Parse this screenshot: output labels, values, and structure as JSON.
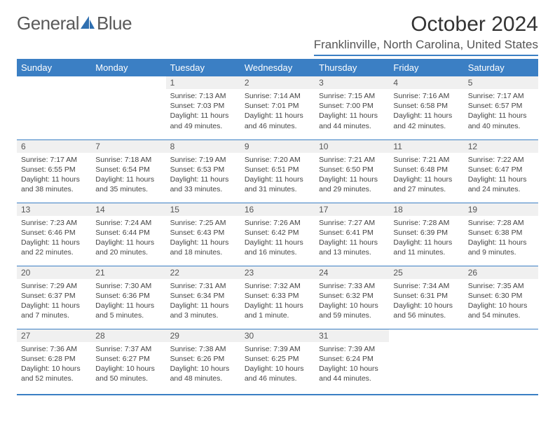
{
  "brand": {
    "word1": "General",
    "word2": "Blue"
  },
  "title": "October 2024",
  "location": "Franklinville, North Carolina, United States",
  "colors": {
    "accent": "#3b7fc4",
    "row_alt": "#f0f0f0",
    "text": "#333333"
  },
  "weekdays": [
    "Sunday",
    "Monday",
    "Tuesday",
    "Wednesday",
    "Thursday",
    "Friday",
    "Saturday"
  ],
  "rows": [
    [
      null,
      null,
      {
        "n": "1",
        "sr": "Sunrise: 7:13 AM",
        "ss": "Sunset: 7:03 PM",
        "dl": "Daylight: 11 hours and 49 minutes."
      },
      {
        "n": "2",
        "sr": "Sunrise: 7:14 AM",
        "ss": "Sunset: 7:01 PM",
        "dl": "Daylight: 11 hours and 46 minutes."
      },
      {
        "n": "3",
        "sr": "Sunrise: 7:15 AM",
        "ss": "Sunset: 7:00 PM",
        "dl": "Daylight: 11 hours and 44 minutes."
      },
      {
        "n": "4",
        "sr": "Sunrise: 7:16 AM",
        "ss": "Sunset: 6:58 PM",
        "dl": "Daylight: 11 hours and 42 minutes."
      },
      {
        "n": "5",
        "sr": "Sunrise: 7:17 AM",
        "ss": "Sunset: 6:57 PM",
        "dl": "Daylight: 11 hours and 40 minutes."
      }
    ],
    [
      {
        "n": "6",
        "sr": "Sunrise: 7:17 AM",
        "ss": "Sunset: 6:55 PM",
        "dl": "Daylight: 11 hours and 38 minutes."
      },
      {
        "n": "7",
        "sr": "Sunrise: 7:18 AM",
        "ss": "Sunset: 6:54 PM",
        "dl": "Daylight: 11 hours and 35 minutes."
      },
      {
        "n": "8",
        "sr": "Sunrise: 7:19 AM",
        "ss": "Sunset: 6:53 PM",
        "dl": "Daylight: 11 hours and 33 minutes."
      },
      {
        "n": "9",
        "sr": "Sunrise: 7:20 AM",
        "ss": "Sunset: 6:51 PM",
        "dl": "Daylight: 11 hours and 31 minutes."
      },
      {
        "n": "10",
        "sr": "Sunrise: 7:21 AM",
        "ss": "Sunset: 6:50 PM",
        "dl": "Daylight: 11 hours and 29 minutes."
      },
      {
        "n": "11",
        "sr": "Sunrise: 7:21 AM",
        "ss": "Sunset: 6:48 PM",
        "dl": "Daylight: 11 hours and 27 minutes."
      },
      {
        "n": "12",
        "sr": "Sunrise: 7:22 AM",
        "ss": "Sunset: 6:47 PM",
        "dl": "Daylight: 11 hours and 24 minutes."
      }
    ],
    [
      {
        "n": "13",
        "sr": "Sunrise: 7:23 AM",
        "ss": "Sunset: 6:46 PM",
        "dl": "Daylight: 11 hours and 22 minutes."
      },
      {
        "n": "14",
        "sr": "Sunrise: 7:24 AM",
        "ss": "Sunset: 6:44 PM",
        "dl": "Daylight: 11 hours and 20 minutes."
      },
      {
        "n": "15",
        "sr": "Sunrise: 7:25 AM",
        "ss": "Sunset: 6:43 PM",
        "dl": "Daylight: 11 hours and 18 minutes."
      },
      {
        "n": "16",
        "sr": "Sunrise: 7:26 AM",
        "ss": "Sunset: 6:42 PM",
        "dl": "Daylight: 11 hours and 16 minutes."
      },
      {
        "n": "17",
        "sr": "Sunrise: 7:27 AM",
        "ss": "Sunset: 6:41 PM",
        "dl": "Daylight: 11 hours and 13 minutes."
      },
      {
        "n": "18",
        "sr": "Sunrise: 7:28 AM",
        "ss": "Sunset: 6:39 PM",
        "dl": "Daylight: 11 hours and 11 minutes."
      },
      {
        "n": "19",
        "sr": "Sunrise: 7:28 AM",
        "ss": "Sunset: 6:38 PM",
        "dl": "Daylight: 11 hours and 9 minutes."
      }
    ],
    [
      {
        "n": "20",
        "sr": "Sunrise: 7:29 AM",
        "ss": "Sunset: 6:37 PM",
        "dl": "Daylight: 11 hours and 7 minutes."
      },
      {
        "n": "21",
        "sr": "Sunrise: 7:30 AM",
        "ss": "Sunset: 6:36 PM",
        "dl": "Daylight: 11 hours and 5 minutes."
      },
      {
        "n": "22",
        "sr": "Sunrise: 7:31 AM",
        "ss": "Sunset: 6:34 PM",
        "dl": "Daylight: 11 hours and 3 minutes."
      },
      {
        "n": "23",
        "sr": "Sunrise: 7:32 AM",
        "ss": "Sunset: 6:33 PM",
        "dl": "Daylight: 11 hours and 1 minute."
      },
      {
        "n": "24",
        "sr": "Sunrise: 7:33 AM",
        "ss": "Sunset: 6:32 PM",
        "dl": "Daylight: 10 hours and 59 minutes."
      },
      {
        "n": "25",
        "sr": "Sunrise: 7:34 AM",
        "ss": "Sunset: 6:31 PM",
        "dl": "Daylight: 10 hours and 56 minutes."
      },
      {
        "n": "26",
        "sr": "Sunrise: 7:35 AM",
        "ss": "Sunset: 6:30 PM",
        "dl": "Daylight: 10 hours and 54 minutes."
      }
    ],
    [
      {
        "n": "27",
        "sr": "Sunrise: 7:36 AM",
        "ss": "Sunset: 6:28 PM",
        "dl": "Daylight: 10 hours and 52 minutes."
      },
      {
        "n": "28",
        "sr": "Sunrise: 7:37 AM",
        "ss": "Sunset: 6:27 PM",
        "dl": "Daylight: 10 hours and 50 minutes."
      },
      {
        "n": "29",
        "sr": "Sunrise: 7:38 AM",
        "ss": "Sunset: 6:26 PM",
        "dl": "Daylight: 10 hours and 48 minutes."
      },
      {
        "n": "30",
        "sr": "Sunrise: 7:39 AM",
        "ss": "Sunset: 6:25 PM",
        "dl": "Daylight: 10 hours and 46 minutes."
      },
      {
        "n": "31",
        "sr": "Sunrise: 7:39 AM",
        "ss": "Sunset: 6:24 PM",
        "dl": "Daylight: 10 hours and 44 minutes."
      },
      null,
      null
    ]
  ]
}
